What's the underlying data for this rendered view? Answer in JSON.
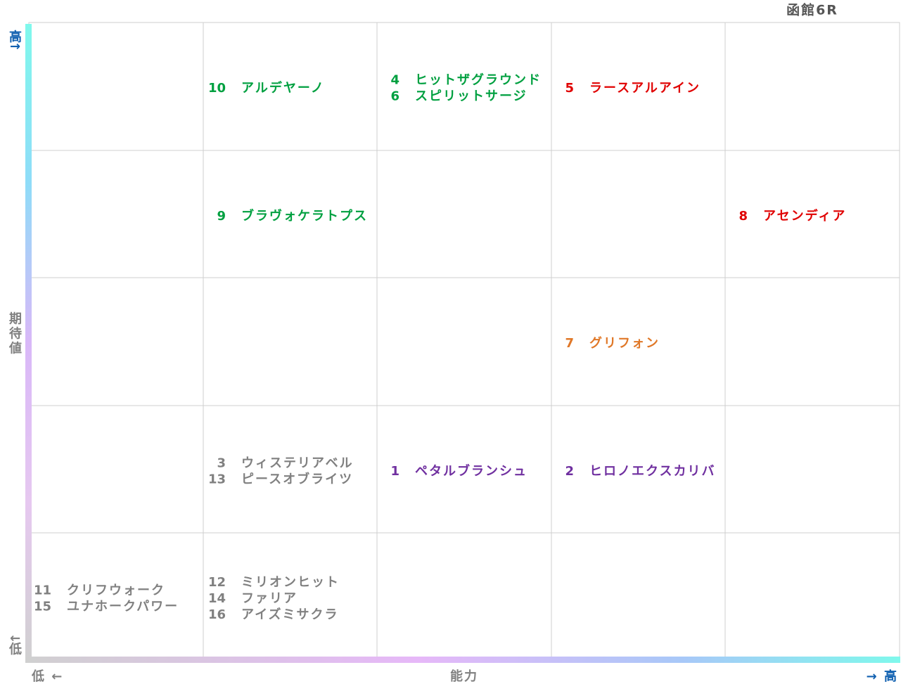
{
  "title": "函館6R",
  "axes": {
    "y_title": "期待値",
    "y_high": "高↑",
    "y_low": "↓低",
    "x_title": "能力",
    "x_low": "低 ←",
    "x_high": "→ 高"
  },
  "grid": {
    "rows": [
      [
        [],
        [
          {
            "number": "10",
            "name": "アルデヤーノ",
            "color": "#00a040"
          }
        ],
        [
          {
            "number": "4",
            "name": "ヒットザグラウンド",
            "color": "#00a040"
          },
          {
            "number": "6",
            "name": "スピリットサージ",
            "color": "#00a040"
          }
        ],
        [
          {
            "number": "5",
            "name": "ラースアルアイン",
            "color": "#e00000"
          }
        ],
        []
      ],
      [
        [],
        [
          {
            "number": "9",
            "name": "ブラヴォケラトプス",
            "color": "#00a040"
          }
        ],
        [],
        [],
        [
          {
            "number": "8",
            "name": "アセンディア",
            "color": "#e00000"
          }
        ]
      ],
      [
        [],
        [],
        [],
        [
          {
            "number": "7",
            "name": "グリフォン",
            "color": "#e07828"
          }
        ],
        []
      ],
      [
        [],
        [
          {
            "number": "3",
            "name": "ウィステリアベル",
            "color": "#808080"
          },
          {
            "number": "13",
            "name": "ピースオブライツ",
            "color": "#808080"
          }
        ],
        [
          {
            "number": "1",
            "name": "ペタルブランシュ",
            "color": "#7030a0"
          }
        ],
        [
          {
            "number": "2",
            "name": "ヒロノエクスカリバ",
            "color": "#7030a0"
          }
        ],
        []
      ],
      [
        [
          {
            "number": "11",
            "name": "クリフウォーク",
            "color": "#808080"
          },
          {
            "number": "15",
            "name": "ユナホークパワー",
            "color": "#808080"
          }
        ],
        [
          {
            "number": "12",
            "name": "ミリオンヒット",
            "color": "#808080"
          },
          {
            "number": "14",
            "name": "ファリア",
            "color": "#808080"
          },
          {
            "number": "16",
            "name": "アイズミサクラ",
            "color": "#808080"
          }
        ],
        [],
        [],
        []
      ]
    ]
  }
}
